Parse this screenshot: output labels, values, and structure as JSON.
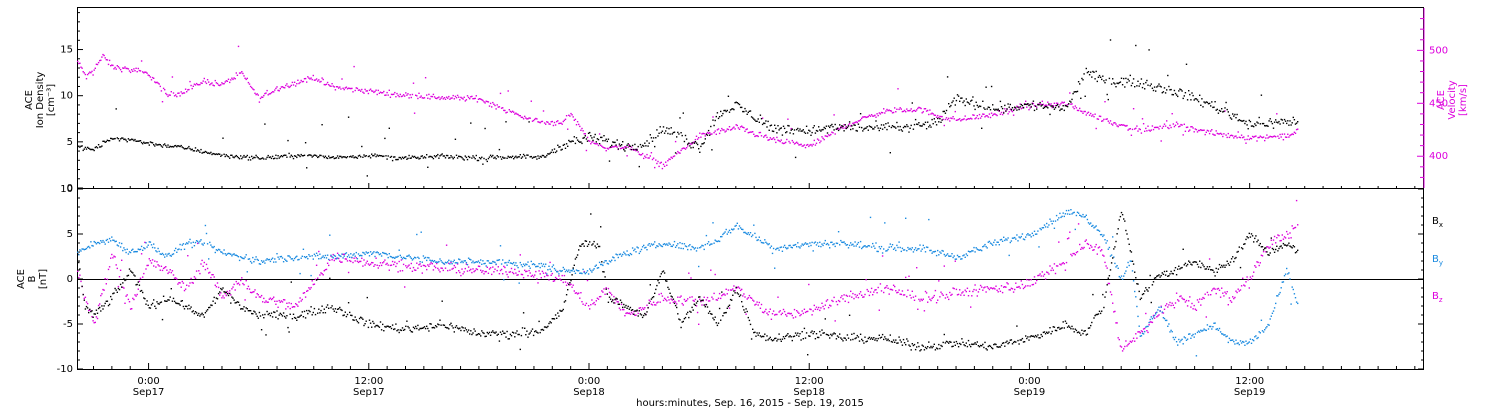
{
  "colors": {
    "black": "#000000",
    "magenta": "#dd00dd",
    "blue": "#1a8ae0",
    "axis": "#000000"
  },
  "x_axis": {
    "title": "hours:minutes, Sep. 16, 2015 - Sep. 19, 2015",
    "ticks": [
      {
        "t": 24,
        "time": "0:00",
        "date": "Sep17"
      },
      {
        "t": 36,
        "time": "12:00",
        "date": "Sep17"
      },
      {
        "t": 48,
        "time": "0:00",
        "date": "Sep18"
      },
      {
        "t": 60,
        "time": "12:00",
        "date": "Sep18"
      },
      {
        "t": 72,
        "time": "0:00",
        "date": "Sep19"
      },
      {
        "t": 84,
        "time": "12:00",
        "date": "Sep19"
      }
    ],
    "range_hours": [
      20.1,
      93.5
    ],
    "data_end_hours": 86.6
  },
  "panels": {
    "top": {
      "left_label_lines": [
        "ACE",
        "Ion Density",
        "[cm⁻³]"
      ],
      "right_label_lines": [
        "ACE",
        "Velocity",
        "[km/s]"
      ],
      "left_ticks": [
        "0",
        "5",
        "10",
        "15"
      ],
      "right_ticks": [
        "400",
        "450",
        "500"
      ],
      "left_range": [
        0,
        19.5
      ],
      "right_range": [
        370,
        540
      ]
    },
    "bottom": {
      "left_label_lines": [
        "ACE",
        "B",
        "[nT]"
      ],
      "left_ticks": [
        "-10",
        "-5",
        "0",
        "5",
        "10"
      ],
      "range": [
        -10,
        10
      ],
      "legend": [
        {
          "base": "B",
          "sub": "x",
          "color": "#000000"
        },
        {
          "base": "B",
          "sub": "y",
          "color": "#1a8ae0"
        },
        {
          "base": "B",
          "sub": "z",
          "color": "#dd00dd"
        }
      ]
    }
  },
  "chart_data": [
    {
      "type": "scatter",
      "title": "",
      "xlabel": "hours:minutes, Sep. 16, 2015 - Sep. 19, 2015",
      "ylabel": "ACE Ion Density [cm⁻³]",
      "y2label": "ACE Velocity [km/s]",
      "ylim": [
        0,
        19.5
      ],
      "y2lim": [
        370,
        540
      ],
      "x_units": "hours since 2015-09-16 00:00",
      "series": [
        {
          "name": "Ion Density",
          "color": "#000000",
          "axis": "left",
          "x": [
            20.1,
            21,
            22,
            23,
            24,
            26,
            28,
            30,
            32,
            34,
            36,
            38,
            40,
            42,
            44,
            45.5,
            46.5,
            48,
            50,
            51,
            52,
            54,
            55,
            56,
            58,
            60,
            62,
            64,
            66,
            67,
            68,
            70,
            72,
            74,
            75,
            76,
            78,
            80,
            82,
            84,
            86.6
          ],
          "y": [
            4.5,
            4.2,
            5.5,
            5.3,
            4.9,
            4.4,
            3.6,
            3.3,
            3.6,
            3.4,
            3.6,
            3.3,
            3.5,
            3.3,
            3.5,
            3.4,
            4.8,
            5.5,
            4.6,
            4.8,
            6.5,
            4.5,
            8.0,
            9.0,
            6.5,
            6.3,
            6.7,
            6.5,
            6.8,
            7.3,
            9.8,
            8.7,
            9.0,
            8.8,
            12.5,
            11.8,
            11.5,
            10.5,
            9.0,
            7.0,
            7.3
          ]
        },
        {
          "name": "Velocity",
          "color": "#dd00dd",
          "axis": "right",
          "x": [
            20.1,
            20.6,
            21.5,
            22,
            23,
            24,
            25,
            26,
            27,
            28,
            29,
            30,
            31,
            32,
            33,
            34,
            36,
            38,
            40,
            42,
            44,
            45.5,
            46.5,
            47,
            48,
            49,
            50,
            52,
            54,
            56,
            58,
            60,
            62,
            64,
            66,
            67.5,
            68,
            70,
            72,
            74,
            76,
            78,
            80,
            82,
            84,
            86,
            86.6
          ],
          "y": [
            490,
            475,
            495,
            485,
            482,
            478,
            458,
            462,
            472,
            468,
            480,
            455,
            465,
            470,
            475,
            466,
            462,
            458,
            456,
            455,
            440,
            432,
            433,
            440,
            415,
            408,
            410,
            392,
            420,
            428,
            416,
            410,
            430,
            443,
            445,
            436,
            435,
            440,
            448,
            450,
            435,
            425,
            430,
            422,
            418,
            420,
            425
          ]
        }
      ]
    },
    {
      "type": "scatter",
      "title": "",
      "xlabel": "hours:minutes, Sep. 16, 2015 - Sep. 19, 2015",
      "ylabel": "ACE B [nT]",
      "ylim": [
        -10,
        10
      ],
      "x_units": "hours since 2015-09-16 00:00",
      "series": [
        {
          "name": "Bx",
          "color": "#000000",
          "x": [
            20.1,
            20.5,
            21,
            22,
            23,
            24,
            25,
            26,
            27,
            28,
            29,
            30,
            32,
            34,
            36,
            38,
            40,
            42,
            44,
            45.5,
            46.5,
            47.5,
            48.5,
            49,
            50,
            51,
            52,
            53,
            54,
            55,
            56,
            57,
            58,
            60,
            62,
            64,
            66,
            68,
            70,
            72,
            74,
            75,
            76,
            77,
            78,
            79,
            80,
            81,
            82,
            83,
            84,
            85,
            86,
            86.6
          ],
          "y": [
            3,
            -3,
            -4,
            -2,
            1,
            -3,
            -2,
            -3,
            -4,
            -1,
            -3,
            -4,
            -4,
            -3,
            -5,
            -5.5,
            -5,
            -6,
            -6,
            -5.5,
            -3.5,
            4,
            4,
            -2,
            -3,
            -4,
            1,
            -5,
            -2,
            -5,
            -1,
            -6,
            -6.5,
            -6,
            -6.5,
            -6.5,
            -7.5,
            -7,
            -7.5,
            -6.5,
            -5,
            -6,
            -3,
            8,
            -2,
            0.5,
            1,
            2,
            1,
            2,
            5,
            3,
            4,
            3
          ]
        },
        {
          "name": "By",
          "color": "#1a8ae0",
          "x": [
            20.1,
            21,
            22,
            23,
            24,
            25,
            26,
            27,
            28,
            30,
            32,
            34,
            36,
            38,
            40,
            42,
            44,
            45.5,
            46.5,
            48,
            50,
            52,
            54,
            55,
            56,
            58,
            60,
            62,
            64,
            66,
            68,
            70,
            72,
            74,
            75,
            76,
            77,
            77.5,
            78,
            79,
            80,
            81,
            82,
            83,
            84,
            85,
            86,
            86.6
          ],
          "y": [
            3,
            4,
            4.5,
            3,
            4,
            2.5,
            4,
            4,
            3,
            2,
            2.5,
            2.5,
            3,
            2.5,
            2,
            2,
            1.8,
            1.5,
            1,
            1,
            3,
            4,
            3.5,
            4.5,
            6,
            3.5,
            4,
            4,
            3.5,
            3.5,
            2.5,
            4,
            5,
            7.5,
            7,
            5,
            0,
            2.5,
            -6.5,
            -3,
            -7,
            -6,
            -5,
            -7,
            -7,
            -5,
            1,
            -3
          ]
        },
        {
          "name": "Bz",
          "color": "#dd00dd",
          "x": [
            20.1,
            20.5,
            21,
            22,
            23,
            24,
            25,
            26,
            27,
            28,
            29,
            30,
            32,
            34,
            36,
            38,
            40,
            42,
            44,
            45.5,
            46.5,
            48,
            49,
            50,
            51,
            52,
            54,
            56,
            58,
            60,
            62,
            64,
            66,
            68,
            70,
            72,
            74,
            75,
            76,
            77,
            78,
            79,
            80,
            81,
            82,
            83,
            84,
            85,
            86,
            86.6
          ],
          "y": [
            1,
            -2,
            -5,
            3,
            -3,
            2,
            1,
            -1,
            2,
            -2,
            0,
            -2,
            -3,
            2.5,
            2,
            1.5,
            1.3,
            1,
            1,
            0.5,
            0.2,
            -3,
            -1,
            -4,
            -3,
            -2,
            -2.5,
            -1,
            -4,
            -3.5,
            -2,
            -1,
            -2,
            -1.5,
            -1,
            -0.5,
            2,
            4,
            3,
            -8,
            -6,
            -4,
            -2,
            -3,
            -1,
            -2,
            0,
            4,
            5,
            6
          ]
        }
      ]
    }
  ]
}
